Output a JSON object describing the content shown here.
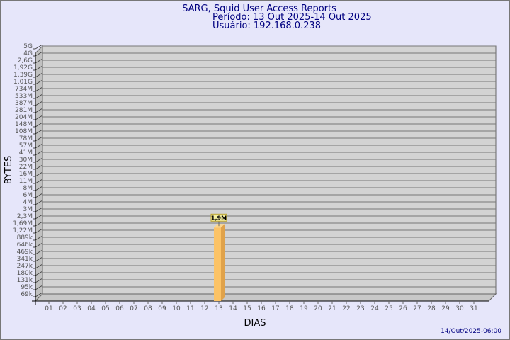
{
  "chart_data": {
    "type": "bar",
    "title": "SARG, Squid User Access Reports",
    "subtitle_period": "Período: 13 Out 2025-14 Out 2025",
    "subtitle_user": "Usuário: 192.168.0.238",
    "xlabel": "DIAS",
    "ylabel": "BYTES",
    "y_scale": "log",
    "y_tick_labels": [
      "5G",
      "4G",
      "2,6G",
      "1,92G",
      "1,39G",
      "1,01G",
      "734M",
      "533M",
      "387M",
      "281M",
      "204M",
      "148M",
      "108M",
      "78M",
      "57M",
      "41M",
      "30M",
      "22M",
      "16M",
      "11M",
      "8M",
      "6M",
      "4M",
      "3M",
      "2,3M",
      "1,69M",
      "1,22M",
      "889k",
      "646k",
      "469k",
      "341k",
      "247k",
      "180k",
      "131k",
      "95k",
      "69k"
    ],
    "categories": [
      "01",
      "02",
      "03",
      "04",
      "05",
      "06",
      "07",
      "08",
      "09",
      "10",
      "11",
      "12",
      "13",
      "14",
      "15",
      "16",
      "17",
      "18",
      "19",
      "20",
      "21",
      "22",
      "23",
      "24",
      "25",
      "26",
      "27",
      "28",
      "29",
      "30",
      "31"
    ],
    "bars": [
      {
        "day": "13",
        "value_label": "1,9M",
        "value_bytes": 1900000
      }
    ],
    "grid": true,
    "footer_date": "14/Out/2025-06:00",
    "colors": {
      "background": "#e6e6fa",
      "plot": "#d3d3d3",
      "bar": "#fcc366",
      "bar_side": "#e0a24a",
      "title": "#000080",
      "label_box": "#f5f0a0"
    }
  }
}
